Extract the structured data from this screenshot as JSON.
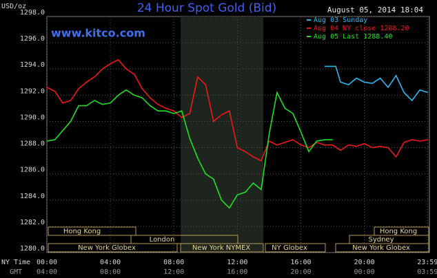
{
  "chart_data": {
    "type": "line",
    "title": "24 Hour Spot Gold (Bid)",
    "subtitle": "August 05, 2014 18:04",
    "watermark": "www.kitco.com",
    "y_label": "USD/oz",
    "x_label": "NY Time",
    "x2_label": "GMT",
    "ylim": [
      1280,
      1298
    ],
    "yticks": [
      {
        "value": 1280,
        "label": "1280.0"
      },
      {
        "value": 1282,
        "label": "1282.0"
      },
      {
        "value": 1284,
        "label": "1284.0"
      },
      {
        "value": 1286,
        "label": "1286.0"
      },
      {
        "value": 1288,
        "label": "1288.0"
      },
      {
        "value": 1290,
        "label": "1290.0"
      },
      {
        "value": 1292,
        "label": "1292.0"
      },
      {
        "value": 1294,
        "label": "1294.0"
      },
      {
        "value": 1296,
        "label": "1296.0"
      },
      {
        "value": 1298,
        "label": "1298.0"
      }
    ],
    "xlim": [
      0,
      24.1
    ],
    "xticks": [
      {
        "value": 0,
        "label": "00:00"
      },
      {
        "value": 4,
        "label": "04:00"
      },
      {
        "value": 8,
        "label": "08:00"
      },
      {
        "value": 12,
        "label": "12:00"
      },
      {
        "value": 16,
        "label": "16:00"
      },
      {
        "value": 20,
        "label": "20:00"
      },
      {
        "value": 23.983,
        "label": "23:59"
      }
    ],
    "gmt_labels": [
      "04:00",
      "08:00",
      "12:00",
      "16:00",
      "20:00",
      "00:00",
      "03:59"
    ],
    "sessions": [
      "Hong Kong",
      "London",
      "New York Globex",
      "New York NYMEX",
      "NY Globex",
      "Sydney",
      "New York Globex",
      "Hong Kong"
    ],
    "grid": true,
    "series": [
      {
        "name": "Aug 03 Sunday",
        "color": "#30b8f0",
        "x": [
          17.5,
          18.2,
          18.5,
          19,
          19.5,
          20,
          20.5,
          21,
          21.5,
          22,
          22.5,
          23,
          23.5,
          24
        ],
        "values": [
          1294.2,
          1294.2,
          1293.0,
          1292.8,
          1293.3,
          1293.0,
          1292.9,
          1293.3,
          1292.6,
          1293.5,
          1292.2,
          1291.6,
          1292.4,
          1292.2
        ]
      },
      {
        "name": "Aug 04 NY close 1288.20",
        "color": "#f01818",
        "x": [
          0,
          0.5,
          1,
          1.5,
          2,
          2.5,
          3,
          3.5,
          4,
          4.5,
          5,
          5.5,
          6,
          6.5,
          7,
          7.5,
          8,
          8.5,
          9,
          9.5,
          10,
          10.5,
          11,
          11.5,
          12,
          12.5,
          13,
          13.5,
          14,
          14.5,
          15,
          15.5,
          16,
          16.5,
          17,
          17.5,
          18,
          18.5,
          19,
          19.5,
          20,
          20.5,
          21,
          21.5,
          22,
          22.5,
          23,
          23.5,
          24
        ],
        "values": [
          1292.6,
          1292.3,
          1291.4,
          1291.6,
          1292.5,
          1293.0,
          1293.4,
          1294.0,
          1294.4,
          1294.7,
          1294.0,
          1293.6,
          1292.5,
          1291.8,
          1291.3,
          1291.0,
          1290.8,
          1290.3,
          1290.6,
          1293.4,
          1292.8,
          1290.0,
          1290.5,
          1290.8,
          1288.0,
          1287.7,
          1287.3,
          1287.0,
          1288.5,
          1288.2,
          1288.4,
          1288.6,
          1288.2,
          1288.0,
          1288.4,
          1288.2,
          1288.2,
          1287.8,
          1288.2,
          1288.1,
          1288.3,
          1288.0,
          1288.1,
          1288.0,
          1287.3,
          1288.4,
          1288.6,
          1288.5,
          1288.6
        ]
      },
      {
        "name": "Aug 05 Last 1288.40",
        "color": "#20e020",
        "x": [
          0,
          0.5,
          1,
          1.5,
          2,
          2.5,
          3,
          3.5,
          4,
          4.5,
          5,
          5.5,
          6,
          6.5,
          7,
          7.5,
          8,
          8.5,
          9,
          9.5,
          10,
          10.5,
          11,
          11.5,
          12,
          12.5,
          13,
          13.5,
          14,
          14.5,
          15,
          15.5,
          16,
          16.5,
          17,
          17.5,
          18
        ],
        "values": [
          1288.5,
          1288.6,
          1289.3,
          1290.0,
          1291.2,
          1291.2,
          1291.6,
          1291.3,
          1291.4,
          1292.0,
          1292.4,
          1292.0,
          1291.8,
          1291.2,
          1290.8,
          1290.8,
          1290.6,
          1290.8,
          1288.7,
          1287.2,
          1286.0,
          1285.6,
          1284.0,
          1283.4,
          1284.4,
          1284.6,
          1285.3,
          1284.8,
          1289.0,
          1292.2,
          1291.0,
          1290.6,
          1289.2,
          1287.7,
          1288.5,
          1288.6,
          1288.6
        ]
      }
    ]
  }
}
